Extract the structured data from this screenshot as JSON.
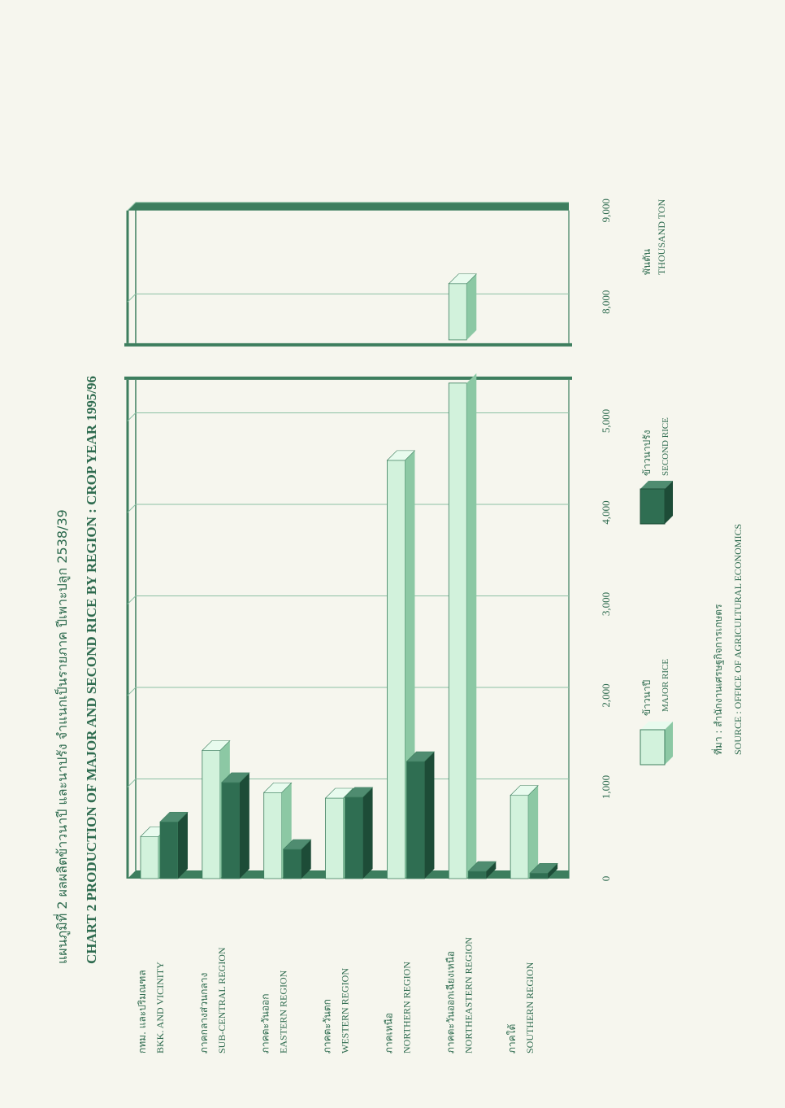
{
  "titles": {
    "thai": "แผนภูมิที่ 2   ผลผลิตข้าวนาปี และนาปรัง จำแนกเป็นรายภาค ปีเพาะปลูก 2538/39",
    "english": "CHART 2   PRODUCTION OF MAJOR AND SECOND RICE BY REGION : CROP YEAR 1995/96"
  },
  "unit": {
    "thai": "พันตัน",
    "english": "THOUSAND TON"
  },
  "legend": [
    {
      "thai": "ข้าวนาปี",
      "english": "MAJOR RICE"
    },
    {
      "thai": "ข้าวนาปรัง",
      "english": "SECOND RICE"
    }
  ],
  "source": {
    "thai": "ที่มา   :   สำนักงานเศรษฐกิจการเกษตร",
    "english": "SOURCE   :   OFFICE OF AGRICULTURAL ECONOMICS"
  },
  "colors": {
    "major": "#d2f2dc",
    "major_side": "#8cc8a4",
    "major_top": "#e8fbee",
    "second": "#2f6e52",
    "second_side": "#1d4c37",
    "second_top": "#4f8c70",
    "frame": "#3d7e5e",
    "grid": "#8cc0a4",
    "text": "#2e6b4f"
  },
  "chart_data": {
    "type": "bar",
    "orientation": "horizontal-3d",
    "categories": [
      {
        "thai": "กทม. และปริมณฑล",
        "english": "BKK. AND VICINITY"
      },
      {
        "thai": "ภาคกลางส่วนกลาง",
        "english": "SUB-CENTRAL REGION"
      },
      {
        "thai": "ภาคตะวันออก",
        "english": "EASTERN REGION"
      },
      {
        "thai": "ภาคตะวันตก",
        "english": "WESTERN REGION"
      },
      {
        "thai": "ภาคเหนือ",
        "english": "NORTHERN REGION"
      },
      {
        "thai": "ภาคตะวันออกเฉียงเหนือ",
        "english": "NORTHEASTERN REGION"
      },
      {
        "thai": "ภาคใต้",
        "english": "SOUTHERN REGION"
      }
    ],
    "series": [
      {
        "name": "MAJOR RICE",
        "values": [
          460,
          1400,
          940,
          880,
          4570,
          8200,
          910
        ]
      },
      {
        "name": "SECOND RICE",
        "values": [
          620,
          1050,
          320,
          890,
          1280,
          80,
          60
        ]
      }
    ],
    "axis_ticks": [
      "0",
      "1,000",
      "2,000",
      "3,000",
      "4,000",
      "5,000",
      "8,000",
      "9,000"
    ],
    "tick_values": [
      0,
      1000,
      2000,
      3000,
      4000,
      5000,
      8000,
      9000
    ],
    "axis_break": [
      5500,
      7500
    ],
    "xlim": [
      0,
      9000
    ],
    "grid": true,
    "legend_position": "bottom"
  }
}
